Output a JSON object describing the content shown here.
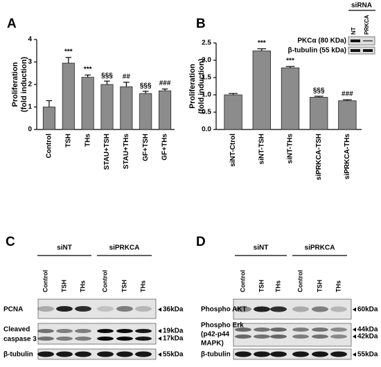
{
  "chart_data": [
    {
      "type": "bar",
      "panel": "A",
      "ylabel": [
        "Proliferation",
        "(fold induction)"
      ],
      "categories": [
        "Control",
        "TSH",
        "THs",
        "STAU+TSH",
        "STAU+THs",
        "GF+TSH",
        "GF+THs"
      ],
      "values": [
        1.0,
        2.95,
        2.32,
        2.0,
        1.9,
        1.6,
        1.72
      ],
      "errors": [
        0.28,
        0.25,
        0.1,
        0.15,
        0.2,
        0.1,
        0.08
      ],
      "annotations": [
        null,
        "***",
        "***",
        "§§§",
        "##",
        "§§§",
        "###"
      ],
      "color": "#8c8c8c",
      "ylim": [
        0,
        4
      ],
      "yticks": [
        0,
        1,
        2,
        3,
        4
      ]
    },
    {
      "type": "bar",
      "panel": "B",
      "ylabel": [
        "Proliferation",
        "(fold induction)"
      ],
      "categories": [
        "siNT-Ctrol",
        "siNT-TSH",
        "siNT-THs",
        "siPRKCA-TSH",
        "siPRKCA-THs"
      ],
      "values": [
        1.0,
        2.27,
        1.78,
        0.93,
        0.83
      ],
      "errors": [
        0.04,
        0.06,
        0.04,
        0.03,
        0.03
      ],
      "annotations": [
        null,
        "***",
        "***",
        "§§§",
        "###"
      ],
      "color": "#8c8c8c",
      "ylim": [
        0,
        2.5
      ],
      "yticks": [
        {
          "value": 0,
          "label": "0.0"
        },
        0.5,
        {
          "value": 1,
          "label": "1.0"
        },
        1.5,
        {
          "value": 2,
          "label": "2.0"
        },
        2.5
      ]
    }
  ],
  "inset": {
    "header": "siRNA",
    "lanes": [
      "NT",
      "PRKCA"
    ],
    "rows": [
      "PKCα (80 KDa)",
      "β-tubulin (55 kDa)"
    ]
  },
  "blots": [
    {
      "panel": "C",
      "groups": [
        "siNT",
        "siPRKCA"
      ],
      "lanes": [
        "Control",
        "TSH",
        "THs",
        "Control",
        "TSH",
        "THs"
      ],
      "rows": [
        {
          "label": [
            "PCNA"
          ],
          "markers": [
            "36kDa"
          ]
        },
        {
          "label": [
            "Cleaved",
            "caspase 3"
          ],
          "markers": [
            "19kDa",
            "17kDa"
          ]
        },
        {
          "label": [
            "β-tubulin"
          ],
          "markers": [
            "55kDa"
          ]
        }
      ]
    },
    {
      "panel": "D",
      "groups": [
        "siNT",
        "siPRKCA"
      ],
      "lanes": [
        "Control",
        "TSH",
        "THs",
        "Control",
        "TSH",
        "THs"
      ],
      "rows": [
        {
          "label": [
            "Phospho AKT"
          ],
          "markers": [
            "60kDa"
          ]
        },
        {
          "label": [
            "Phospho Erk",
            "(p42-p44",
            "MAPK)"
          ],
          "markers": [
            "44kDa",
            "42kDa"
          ]
        },
        {
          "label": [
            "β-tubulin"
          ],
          "markers": [
            "55kDa"
          ]
        }
      ]
    }
  ]
}
